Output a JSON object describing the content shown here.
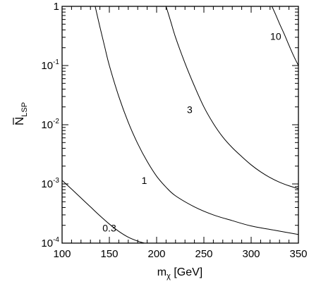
{
  "chart_data": {
    "type": "line",
    "xlabel": {
      "main": "m",
      "sub": "χ",
      "unit": " [GeV]"
    },
    "ylabel": {
      "main": "N",
      "sub": "LSP",
      "bar": true
    },
    "xlim": [
      100,
      350
    ],
    "ylim": [
      0.0001,
      1
    ],
    "y_scale": "log",
    "grid": false,
    "x_ticks": [
      {
        "value": 100,
        "label": "100"
      },
      {
        "value": 150,
        "label": "150"
      },
      {
        "value": 200,
        "label": "200"
      },
      {
        "value": 250,
        "label": "250"
      },
      {
        "value": 300,
        "label": "300"
      },
      {
        "value": 350,
        "label": "350"
      }
    ],
    "y_ticks": [
      {
        "value": 1,
        "base": "1",
        "exp": ""
      },
      {
        "value": 0.1,
        "base": "10",
        "exp": "-1"
      },
      {
        "value": 0.01,
        "base": "10",
        "exp": "-2"
      },
      {
        "value": 0.001,
        "base": "10",
        "exp": "-3"
      },
      {
        "value": 0.0001,
        "base": "10",
        "exp": "-4"
      }
    ],
    "series": [
      {
        "label": "0.3",
        "label_at": [
          150,
          0.00018
        ],
        "x": [
          100,
          110,
          120,
          130,
          140,
          150,
          160,
          170,
          180,
          187
        ],
        "y": [
          0.00115,
          0.00082,
          0.00058,
          0.00041,
          0.00029,
          0.00021,
          0.000158,
          0.000126,
          0.000108,
          0.0001
        ]
      },
      {
        "label": "1",
        "label_at": [
          187,
          0.00115
        ],
        "x": [
          135,
          140,
          145,
          150,
          160,
          170,
          180,
          190,
          200,
          210,
          220,
          240,
          260,
          280,
          300,
          325,
          350
        ],
        "y": [
          1,
          0.45,
          0.21,
          0.1,
          0.03,
          0.011,
          0.0048,
          0.0024,
          0.00135,
          0.00088,
          0.00063,
          0.00041,
          0.0003,
          0.00024,
          0.000195,
          0.000165,
          0.00014
        ]
      },
      {
        "label": "3",
        "label_at": [
          235,
          0.018
        ],
        "x": [
          210,
          215,
          220,
          230,
          240,
          250,
          260,
          270,
          280,
          290,
          300,
          310,
          320,
          330,
          340,
          350
        ],
        "y": [
          1,
          0.55,
          0.3,
          0.11,
          0.045,
          0.02,
          0.0105,
          0.0062,
          0.0041,
          0.0029,
          0.0021,
          0.0016,
          0.00128,
          0.00107,
          0.00093,
          0.00083
        ]
      },
      {
        "label": "10",
        "label_at": [
          326,
          0.31
        ],
        "x": [
          322,
          326,
          330,
          335,
          340,
          345,
          350
        ],
        "y": [
          1,
          0.72,
          0.51,
          0.34,
          0.22,
          0.145,
          0.1
        ]
      }
    ]
  }
}
